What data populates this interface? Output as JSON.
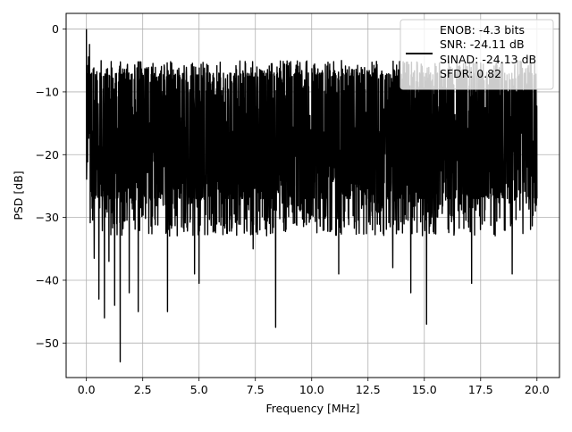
{
  "chart_data": {
    "type": "line",
    "title": "",
    "xlabel": "Frequency [MHz]",
    "ylabel": "PSD [dB]",
    "xlim": [
      -0.9,
      21.0
    ],
    "ylim": [
      -55.5,
      2.5
    ],
    "grid": true,
    "x_ticks": [
      0.0,
      2.5,
      5.0,
      7.5,
      10.0,
      12.5,
      15.0,
      17.5,
      20.0
    ],
    "x_tick_labels": [
      "0.0",
      "2.5",
      "5.0",
      "7.5",
      "10.0",
      "12.5",
      "15.0",
      "17.5",
      "20.0"
    ],
    "y_ticks": [
      0,
      -10,
      -20,
      -30,
      -40,
      -50
    ],
    "y_tick_labels": [
      "0",
      "−10",
      "−20",
      "−30",
      "−40",
      "−50"
    ],
    "series": [
      {
        "name": "",
        "color": "#000000",
        "x_range": [
          0.0,
          20.0
        ],
        "peak": {
          "x": 0.0,
          "y": 0.0
        },
        "typical_upper_envelope": -7,
        "typical_lower_envelope": -27,
        "deep_nulls": [
          {
            "x": 0.35,
            "y": -36.5
          },
          {
            "x": 0.55,
            "y": -43
          },
          {
            "x": 0.8,
            "y": -46
          },
          {
            "x": 1.0,
            "y": -37
          },
          {
            "x": 1.25,
            "y": -44
          },
          {
            "x": 1.5,
            "y": -53
          },
          {
            "x": 1.9,
            "y": -42
          },
          {
            "x": 2.3,
            "y": -45
          },
          {
            "x": 3.6,
            "y": -45
          },
          {
            "x": 4.8,
            "y": -39
          },
          {
            "x": 5.0,
            "y": -40.5
          },
          {
            "x": 7.4,
            "y": -35
          },
          {
            "x": 8.4,
            "y": -47.5
          },
          {
            "x": 11.2,
            "y": -39
          },
          {
            "x": 13.6,
            "y": -38
          },
          {
            "x": 14.4,
            "y": -42
          },
          {
            "x": 15.1,
            "y": -47
          },
          {
            "x": 17.1,
            "y": -40.5
          },
          {
            "x": 18.9,
            "y": -39
          }
        ]
      }
    ],
    "legend": {
      "placement": "top-right",
      "lines": [
        "ENOB: -4.3 bits",
        "SNR: -24.11 dB",
        "SINAD: -24.13 dB",
        "SFDR: 0.82"
      ]
    }
  }
}
